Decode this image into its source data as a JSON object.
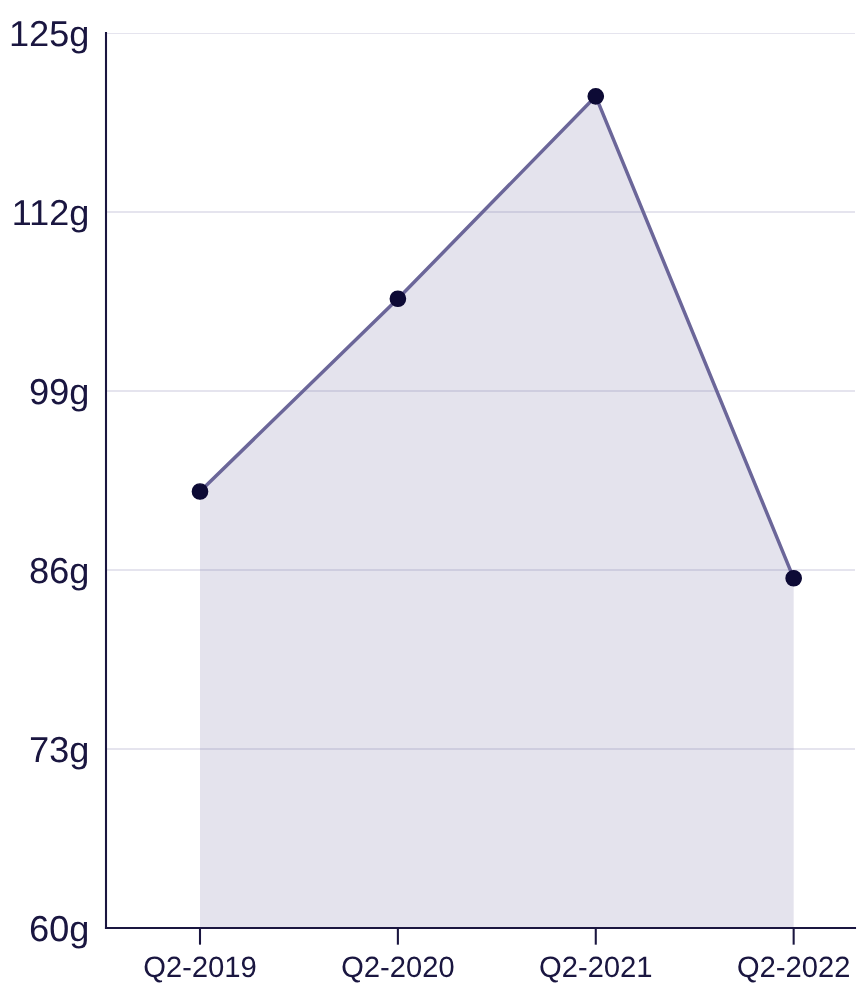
{
  "chart_data": {
    "type": "area",
    "categories": [
      "Q2-2019",
      "Q2-2020",
      "Q2-2021",
      "Q2-2022"
    ],
    "series": [
      {
        "color": "#6b6699",
        "values": [
          91.7,
          105.7,
          120.4,
          85.4
        ]
      }
    ],
    "ylim": [
      60,
      125
    ],
    "yticks": [
      {
        "value": 60,
        "label": "60g"
      },
      {
        "value": 73,
        "label": "73g"
      },
      {
        "value": 86,
        "label": "86g"
      },
      {
        "value": 99,
        "label": "99g"
      },
      {
        "value": 112,
        "label": "112g"
      },
      {
        "value": 125,
        "label": "125g"
      }
    ],
    "grid": "y",
    "marker": "circle",
    "line_style": "solid"
  }
}
